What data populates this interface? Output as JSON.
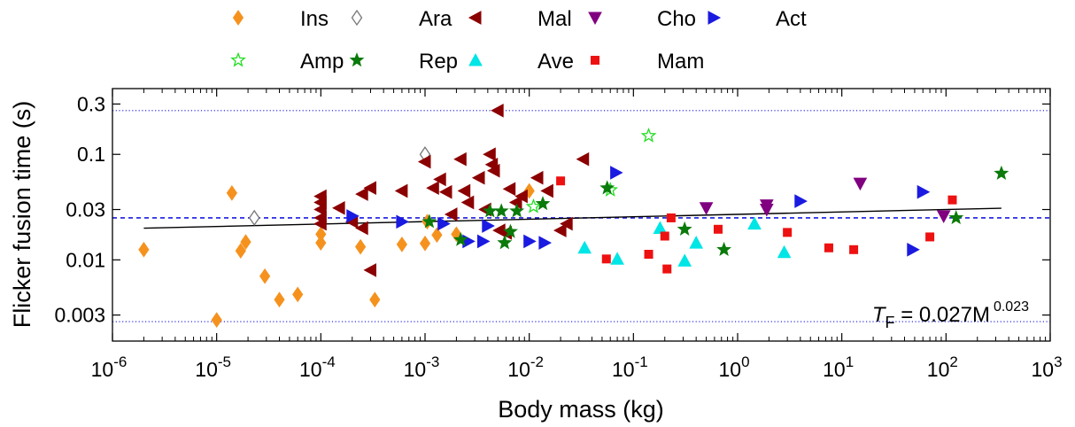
{
  "chart_data": {
    "type": "scatter",
    "xlabel": "Body mass (kg)",
    "ylabel": "Flicker fusion time (s)",
    "x_scale": "log",
    "y_scale": "log",
    "xlim": [
      1e-06,
      1000
    ],
    "ylim": [
      0.0017,
      0.42
    ],
    "x_ticks": [
      {
        "value": 1e-06,
        "base": "10",
        "exp": "-6"
      },
      {
        "value": 1e-05,
        "base": "10",
        "exp": "-5"
      },
      {
        "value": 0.0001,
        "base": "10",
        "exp": "-4"
      },
      {
        "value": 0.001,
        "base": "10",
        "exp": "-3"
      },
      {
        "value": 0.01,
        "base": "10",
        "exp": "-2"
      },
      {
        "value": 0.1,
        "base": "10",
        "exp": "-1"
      },
      {
        "value": 1,
        "base": "10",
        "exp": "0"
      },
      {
        "value": 10,
        "base": "10",
        "exp": "1"
      },
      {
        "value": 100,
        "base": "10",
        "exp": "2"
      },
      {
        "value": 1000,
        "base": "10",
        "exp": "3"
      }
    ],
    "y_ticks": [
      {
        "value": 0.003,
        "label": "0.003"
      },
      {
        "value": 0.01,
        "label": "0.01"
      },
      {
        "value": 0.03,
        "label": "0.03"
      },
      {
        "value": 0.1,
        "label": "0.1"
      },
      {
        "value": 0.3,
        "label": "0.3"
      }
    ],
    "grid": false,
    "legend_position": "top, above plot",
    "reference_lines": [
      {
        "y": 0.26,
        "style": "dotted",
        "color": "#1a1ae0"
      },
      {
        "y": 0.025,
        "style": "dashed",
        "color": "#1a1ae0"
      },
      {
        "y": 0.0026,
        "style": "dotted",
        "color": "#1a1ae0"
      }
    ],
    "fit_line": {
      "coefficient": 0.027,
      "exponent": 0.023,
      "x_range": [
        2e-06,
        340
      ],
      "color": "#000000",
      "label": {
        "lhs": "T",
        "sub": "F",
        "mid": " = 0.027M",
        "sup": "0.023"
      }
    },
    "series": [
      {
        "name": "Ins",
        "marker": "diamond",
        "color": "#f5921e",
        "filled": true,
        "points": [
          [
            2e-06,
            0.0125
          ],
          [
            1e-05,
            0.0027
          ],
          [
            1.4e-05,
            0.043
          ],
          [
            1.7e-05,
            0.0122
          ],
          [
            1.9e-05,
            0.0148
          ],
          [
            2.9e-05,
            0.007
          ],
          [
            4e-05,
            0.0042
          ],
          [
            6e-05,
            0.0047
          ],
          [
            0.0001,
            0.0175
          ],
          [
            0.0001,
            0.0145
          ],
          [
            0.00024,
            0.0133
          ],
          [
            0.00033,
            0.0042
          ],
          [
            0.0006,
            0.014
          ],
          [
            0.001,
            0.0143
          ],
          [
            0.00105,
            0.023
          ],
          [
            0.0013,
            0.0172
          ],
          [
            0.002,
            0.0175
          ],
          [
            0.01,
            0.045
          ]
        ]
      },
      {
        "name": "Ara",
        "marker": "diamond",
        "color": "#777777",
        "filled": false,
        "points": [
          [
            2.3e-05,
            0.025
          ],
          [
            0.001,
            0.1
          ]
        ]
      },
      {
        "name": "Mal",
        "marker": "triangle-left",
        "color": "#8b0000",
        "filled": true,
        "points": [
          [
            0.0001,
            0.04
          ],
          [
            0.0001,
            0.035
          ],
          [
            0.0001,
            0.03
          ],
          [
            0.0001,
            0.025
          ],
          [
            0.0001,
            0.022
          ],
          [
            0.00015,
            0.031
          ],
          [
            0.0002,
            0.023
          ],
          [
            0.00025,
            0.02
          ],
          [
            0.00025,
            0.042
          ],
          [
            0.0003,
            0.048
          ],
          [
            0.0003,
            0.008
          ],
          [
            0.0006,
            0.045
          ],
          [
            0.001,
            0.085
          ],
          [
            0.0012,
            0.048
          ],
          [
            0.0014,
            0.058
          ],
          [
            0.0016,
            0.044
          ],
          [
            0.0018,
            0.027
          ],
          [
            0.0022,
            0.09
          ],
          [
            0.0024,
            0.045
          ],
          [
            0.0026,
            0.035
          ],
          [
            0.0033,
            0.06
          ],
          [
            0.0038,
            0.03
          ],
          [
            0.0042,
            0.1
          ],
          [
            0.0044,
            0.08
          ],
          [
            0.0046,
            0.07
          ],
          [
            0.005,
            0.26
          ],
          [
            0.0052,
            0.019
          ],
          [
            0.006,
            0.018
          ],
          [
            0.0065,
            0.047
          ],
          [
            0.0075,
            0.035
          ],
          [
            0.0085,
            0.04
          ],
          [
            0.012,
            0.06
          ],
          [
            0.015,
            0.045
          ],
          [
            0.02,
            0.019
          ],
          [
            0.023,
            0.022
          ],
          [
            0.033,
            0.09
          ]
        ]
      },
      {
        "name": "Cho",
        "marker": "triangle-down",
        "color": "#800080",
        "filled": true,
        "points": [
          [
            0.5,
            0.031
          ],
          [
            1.9,
            0.033
          ],
          [
            1.9,
            0.03
          ],
          [
            15,
            0.053
          ],
          [
            95,
            0.026
          ]
        ]
      },
      {
        "name": "Act",
        "marker": "triangle-right",
        "color": "#1a1ae0",
        "filled": true,
        "points": [
          [
            0.0002,
            0.026
          ],
          [
            0.0006,
            0.023
          ],
          [
            0.0015,
            0.022
          ],
          [
            0.0026,
            0.015
          ],
          [
            0.0036,
            0.015
          ],
          [
            0.004,
            0.021
          ],
          [
            0.01,
            0.015
          ],
          [
            0.014,
            0.0145
          ],
          [
            0.068,
            0.067
          ],
          [
            4,
            0.036
          ],
          [
            48,
            0.0125
          ],
          [
            60,
            0.044
          ]
        ]
      },
      {
        "name": "Amp",
        "marker": "star",
        "color": "#22dd22",
        "filled": false,
        "points": [
          [
            0.011,
            0.032
          ],
          [
            0.06,
            0.046
          ],
          [
            0.14,
            0.15
          ]
        ]
      },
      {
        "name": "Rep",
        "marker": "star",
        "color": "#0a7a0a",
        "filled": true,
        "points": [
          [
            0.0011,
            0.023
          ],
          [
            0.0022,
            0.0155
          ],
          [
            0.0042,
            0.029
          ],
          [
            0.0054,
            0.029
          ],
          [
            0.0058,
            0.0145
          ],
          [
            0.0066,
            0.0185
          ],
          [
            0.0076,
            0.029
          ],
          [
            0.0135,
            0.034
          ],
          [
            0.056,
            0.048
          ],
          [
            0.31,
            0.0195
          ],
          [
            0.74,
            0.0125
          ],
          [
            125,
            0.025
          ],
          [
            340,
            0.066
          ]
        ]
      },
      {
        "name": "Ave",
        "marker": "triangle-up",
        "color": "#00e5e5",
        "filled": true,
        "points": [
          [
            0.034,
            0.013
          ],
          [
            0.07,
            0.0102
          ],
          [
            0.18,
            0.02
          ],
          [
            0.31,
            0.0098
          ],
          [
            0.4,
            0.0145
          ],
          [
            1.45,
            0.022
          ],
          [
            2.8,
            0.0118
          ]
        ]
      },
      {
        "name": "Mam",
        "marker": "square",
        "color": "#ee1111",
        "filled": true,
        "points": [
          [
            0.02,
            0.056
          ],
          [
            0.055,
            0.0102
          ],
          [
            0.14,
            0.0113
          ],
          [
            0.2,
            0.0168
          ],
          [
            0.21,
            0.0082
          ],
          [
            0.23,
            0.025
          ],
          [
            0.65,
            0.0195
          ],
          [
            3,
            0.0182
          ],
          [
            7.5,
            0.013
          ],
          [
            13,
            0.0125
          ],
          [
            70,
            0.0165
          ],
          [
            115,
            0.037
          ]
        ]
      }
    ]
  }
}
